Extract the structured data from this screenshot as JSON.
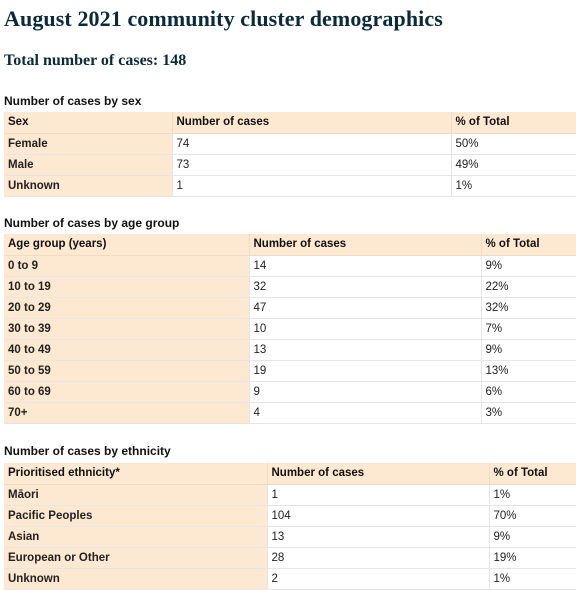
{
  "title": "August 2021 community cluster demographics",
  "total": "Total number of cases: 148",
  "sex_table": {
    "caption": "Number of cases by sex",
    "headers": [
      "Sex",
      "Number of cases",
      "% of Total"
    ],
    "rows": [
      [
        "Female",
        "74",
        "50%"
      ],
      [
        "Male",
        "73",
        "49%"
      ],
      [
        "Unknown",
        "1",
        "1%"
      ]
    ]
  },
  "age_table": {
    "caption": "Number of cases by age group",
    "headers": [
      "Age group (years)",
      "Number of cases",
      "% of Total"
    ],
    "rows": [
      [
        "0 to 9",
        "14",
        "9%"
      ],
      [
        "10 to 19",
        "32",
        "22%"
      ],
      [
        "20 to 29",
        "47",
        "32%"
      ],
      [
        "30 to 39",
        "10",
        "7%"
      ],
      [
        "40 to 49",
        "13",
        "9%"
      ],
      [
        "50 to 59",
        "19",
        "13%"
      ],
      [
        "60 to 69",
        "9",
        "6%"
      ],
      [
        "70+",
        "4",
        "3%"
      ]
    ]
  },
  "ethnicity_table": {
    "caption": "Number of cases by ethnicity",
    "headers": [
      "Prioritised ethnicity*",
      "Number of cases",
      "% of Total"
    ],
    "rows": [
      [
        "Māori",
        "1",
        "1%"
      ],
      [
        "Pacific Peoples",
        "104",
        "70%"
      ],
      [
        "Asian",
        "13",
        "9%"
      ],
      [
        "European or Other",
        "28",
        "19%"
      ],
      [
        "Unknown",
        "2",
        "1%"
      ]
    ]
  }
}
